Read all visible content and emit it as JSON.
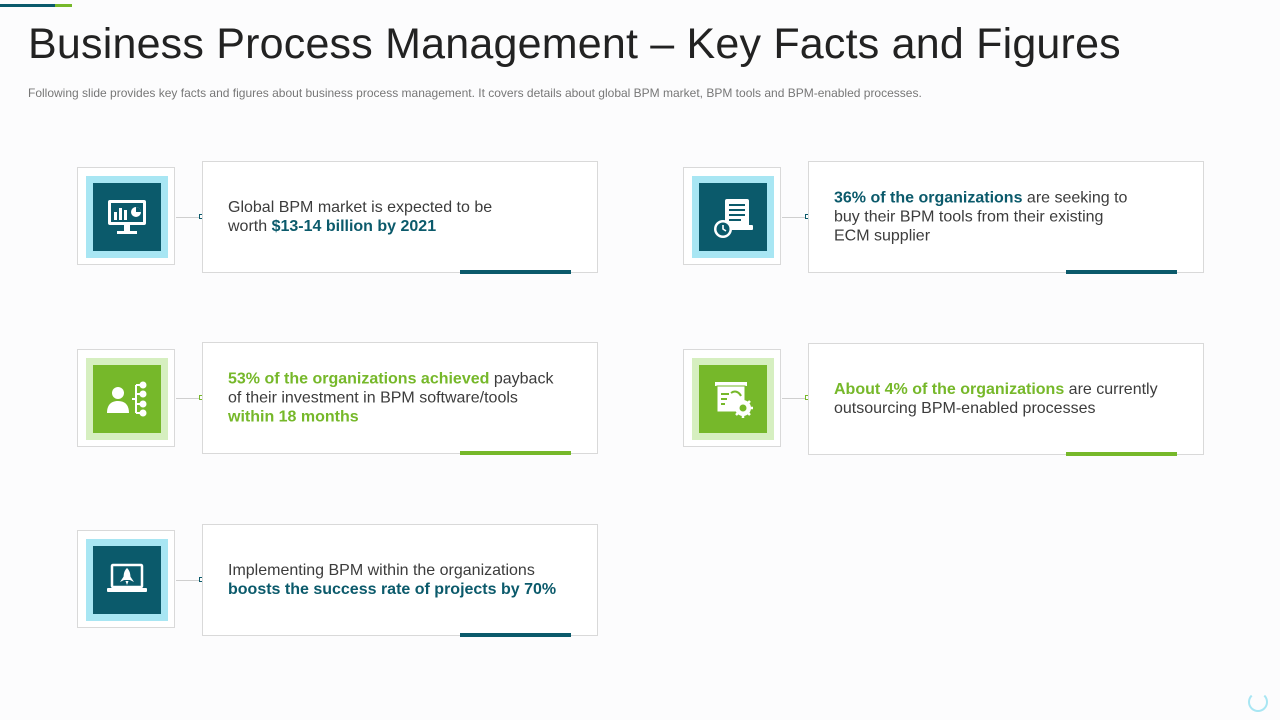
{
  "title": "Business Process Management – Key Facts and Figures",
  "subtitle": "Following slide provides  key facts and figures  about business process management. It covers details about global BPM market, BPM tools and BPM-enabled processes.",
  "colors": {
    "teal": "#0b5a6b",
    "green": "#76b82a",
    "light_teal": "#a8e6f3",
    "light_green": "#d6efc0"
  },
  "facts": [
    {
      "icon": "monitor-chart-icon",
      "theme": "teal",
      "line1": "Global BPM market is expected to be",
      "line2_plain": "worth ",
      "line2_bold": "$13-14 billion  by 2021"
    },
    {
      "icon": "document-clock-icon",
      "theme": "teal",
      "bold": "36% of the organizations",
      "rest1": " are seeking to",
      "line2": "buy their BPM tools from their existing",
      "line3": "ECM supplier"
    },
    {
      "icon": "user-network-icon",
      "theme": "green",
      "bold": "53% of the organizations achieved",
      "rest1": " payback",
      "line2": "of their investment  in BPM software/tools",
      "line3_bold": "within 18 months"
    },
    {
      "icon": "board-gear-icon",
      "theme": "green",
      "bold": "About 4% of the organizations",
      "rest1": " are currently",
      "line2": "outsourcing  BPM-enabled processes"
    },
    {
      "icon": "laptop-rocket-icon",
      "theme": "teal",
      "line1": "Implementing  BPM within the organizations",
      "line2_bold": "boosts the success rate of projects by 70%"
    }
  ]
}
